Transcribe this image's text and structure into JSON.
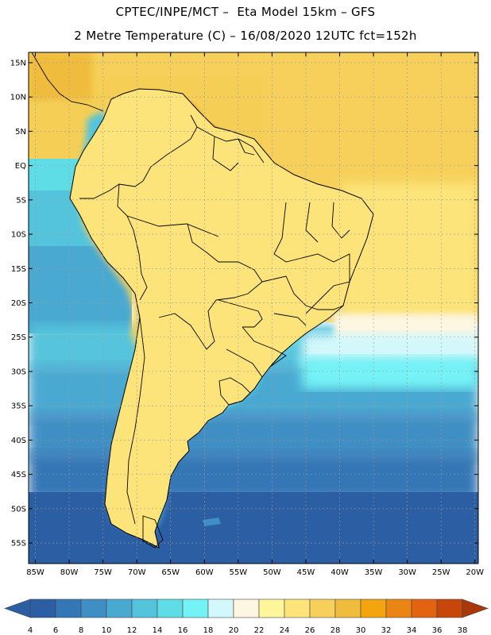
{
  "header": {
    "line1": "CPTEC/INPE/MCT –  Eta Model 15km – GFS",
    "line2": "2 Metre Temperature (C) – 16/08/2020 12UTC fct=152h"
  },
  "map": {
    "lat_labels": [
      "15N",
      "10N",
      "5N",
      "EQ",
      "5S",
      "10S",
      "15S",
      "20S",
      "25S",
      "30S",
      "35S",
      "40S",
      "45S",
      "50S",
      "55S"
    ],
    "lon_labels": [
      "85W",
      "80W",
      "75W",
      "70W",
      "65W",
      "60W",
      "55W",
      "50W",
      "45W",
      "40W",
      "35W",
      "30W",
      "25W",
      "20W"
    ],
    "lat_range": [
      16.5,
      -58
    ],
    "lon_range": [
      -86,
      -19.5
    ]
  },
  "colorbar": {
    "ticks": [
      "4",
      "6",
      "8",
      "10",
      "12",
      "14",
      "16",
      "18",
      "20",
      "22",
      "24",
      "26",
      "28",
      "30",
      "32",
      "34",
      "36",
      "38"
    ],
    "colors": [
      "#2c5ea4",
      "#3477b6",
      "#3f8fc4",
      "#4aa9d1",
      "#54c4dc",
      "#5fdde7",
      "#74f3f6",
      "#d2f8fb",
      "#fdf6e1",
      "#fdf69a",
      "#fde47a",
      "#f6d05a",
      "#f0bc3c",
      "#f2a50f",
      "#ea8414",
      "#e26411",
      "#c7470b",
      "#a8370a"
    ]
  }
}
